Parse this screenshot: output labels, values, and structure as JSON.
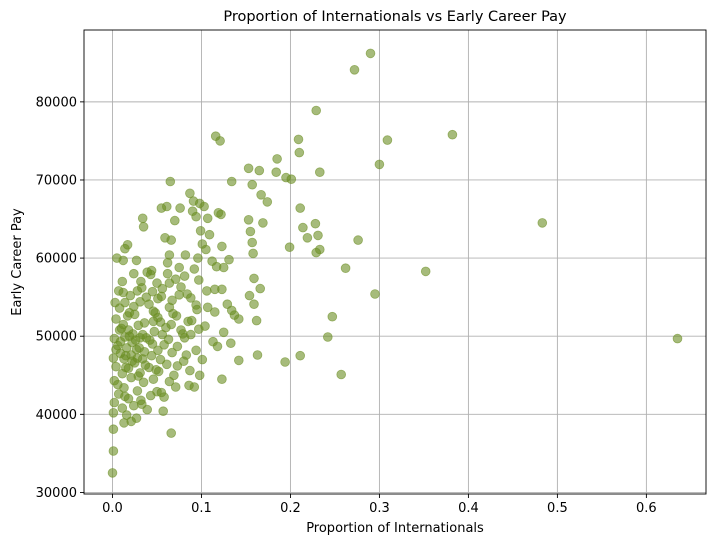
{
  "chart_data": {
    "type": "scatter",
    "title": "Proportion of Internationals vs Early Career Pay",
    "xlabel": "Proportion of Internationals",
    "ylabel": "Early Career Pay",
    "xlim": [
      -0.032,
      0.667
    ],
    "ylim": [
      29800,
      89200
    ],
    "xticks": [
      0.0,
      0.1,
      0.2,
      0.3,
      0.4,
      0.5,
      0.6
    ],
    "xtick_labels": [
      "0.0",
      "0.1",
      "0.2",
      "0.3",
      "0.4",
      "0.5",
      "0.6"
    ],
    "yticks": [
      30000,
      40000,
      50000,
      60000,
      70000,
      80000
    ],
    "ytick_labels": [
      "30000",
      "40000",
      "50000",
      "60000",
      "70000",
      "80000"
    ],
    "grid": true,
    "marker_color": "#6b8e23",
    "marker_alpha": 0.6,
    "points": [
      [
        0.29,
        86200
      ],
      [
        0.272,
        84100
      ],
      [
        0.229,
        78900
      ],
      [
        0.382,
        75800
      ],
      [
        0.309,
        75100
      ],
      [
        0.116,
        75600
      ],
      [
        0.121,
        75000
      ],
      [
        0.209,
        75200
      ],
      [
        0.21,
        73500
      ],
      [
        0.185,
        72700
      ],
      [
        0.3,
        72000
      ],
      [
        0.153,
        71500
      ],
      [
        0.165,
        71200
      ],
      [
        0.184,
        71000
      ],
      [
        0.233,
        71000
      ],
      [
        0.065,
        69800
      ],
      [
        0.134,
        69800
      ],
      [
        0.157,
        69400
      ],
      [
        0.195,
        70300
      ],
      [
        0.201,
        70100
      ],
      [
        0.167,
        68100
      ],
      [
        0.087,
        68300
      ],
      [
        0.091,
        67300
      ],
      [
        0.174,
        67200
      ],
      [
        0.061,
        66600
      ],
      [
        0.055,
        66400
      ],
      [
        0.076,
        66400
      ],
      [
        0.098,
        67000
      ],
      [
        0.09,
        66000
      ],
      [
        0.211,
        66400
      ],
      [
        0.119,
        65800
      ],
      [
        0.122,
        65600
      ],
      [
        0.094,
        65300
      ],
      [
        0.107,
        65100
      ],
      [
        0.034,
        65100
      ],
      [
        0.153,
        64900
      ],
      [
        0.169,
        64500
      ],
      [
        0.228,
        64400
      ],
      [
        0.483,
        64500
      ],
      [
        0.07,
        64800
      ],
      [
        0.035,
        64000
      ],
      [
        0.214,
        63900
      ],
      [
        0.155,
        63400
      ],
      [
        0.231,
        62900
      ],
      [
        0.099,
        63500
      ],
      [
        0.109,
        63000
      ],
      [
        0.059,
        62600
      ],
      [
        0.066,
        62300
      ],
      [
        0.157,
        62000
      ],
      [
        0.276,
        62300
      ],
      [
        0.105,
        61100
      ],
      [
        0.123,
        61500
      ],
      [
        0.017,
        61700
      ],
      [
        0.014,
        61200
      ],
      [
        0.219,
        62600
      ],
      [
        0.233,
        61100
      ],
      [
        0.229,
        60700
      ],
      [
        0.199,
        61400
      ],
      [
        0.158,
        60600
      ],
      [
        0.064,
        60400
      ],
      [
        0.082,
        60400
      ],
      [
        0.096,
        60000
      ],
      [
        0.005,
        60000
      ],
      [
        0.012,
        59700
      ],
      [
        0.027,
        59700
      ],
      [
        0.131,
        59800
      ],
      [
        0.117,
        58900
      ],
      [
        0.125,
        58800
      ],
      [
        0.075,
        58800
      ],
      [
        0.092,
        58600
      ],
      [
        0.262,
        58700
      ],
      [
        0.352,
        58300
      ],
      [
        0.044,
        58400
      ],
      [
        0.039,
        58200
      ],
      [
        0.024,
        58000
      ],
      [
        0.062,
        58000
      ],
      [
        0.081,
        57700
      ],
      [
        0.159,
        57400
      ],
      [
        0.071,
        57300
      ],
      [
        0.032,
        57000
      ],
      [
        0.011,
        57000
      ],
      [
        0.097,
        57200
      ],
      [
        0.056,
        56100
      ],
      [
        0.077,
        56300
      ],
      [
        0.064,
        56800
      ],
      [
        0.166,
        56100
      ],
      [
        0.115,
        56000
      ],
      [
        0.123,
        56000
      ],
      [
        0.007,
        55800
      ],
      [
        0.012,
        55600
      ],
      [
        0.028,
        55800
      ],
      [
        0.045,
        55700
      ],
      [
        0.055,
        55100
      ],
      [
        0.075,
        55300
      ],
      [
        0.084,
        55400
      ],
      [
        0.154,
        55200
      ],
      [
        0.295,
        55400
      ],
      [
        0.038,
        55000
      ],
      [
        0.051,
        54800
      ],
      [
        0.067,
        54600
      ],
      [
        0.088,
        54900
      ],
      [
        0.003,
        54300
      ],
      [
        0.014,
        54300
      ],
      [
        0.031,
        54400
      ],
      [
        0.094,
        54000
      ],
      [
        0.129,
        54100
      ],
      [
        0.159,
        54100
      ],
      [
        0.064,
        53700
      ],
      [
        0.107,
        53700
      ],
      [
        0.134,
        53300
      ],
      [
        0.137,
        52700
      ],
      [
        0.115,
        53100
      ],
      [
        0.046,
        53200
      ],
      [
        0.019,
        53000
      ],
      [
        0.025,
        52800
      ],
      [
        0.072,
        52600
      ],
      [
        0.247,
        52500
      ],
      [
        0.051,
        52400
      ],
      [
        0.004,
        52200
      ],
      [
        0.142,
        52200
      ],
      [
        0.162,
        52000
      ],
      [
        0.085,
        51900
      ],
      [
        0.054,
        51800
      ],
      [
        0.036,
        51700
      ],
      [
        0.012,
        51500
      ],
      [
        0.029,
        51400
      ],
      [
        0.066,
        51500
      ],
      [
        0.104,
        51300
      ],
      [
        0.097,
        50900
      ],
      [
        0.125,
        50500
      ],
      [
        0.077,
        50800
      ],
      [
        0.047,
        50600
      ],
      [
        0.008,
        50800
      ],
      [
        0.018,
        50800
      ],
      [
        0.023,
        50300
      ],
      [
        0.034,
        50200
      ],
      [
        0.056,
        50200
      ],
      [
        0.088,
        50200
      ],
      [
        0.002,
        49700
      ],
      [
        0.014,
        49900
      ],
      [
        0.031,
        49800
      ],
      [
        0.042,
        49500
      ],
      [
        0.063,
        49600
      ],
      [
        0.081,
        49800
      ],
      [
        0.113,
        49300
      ],
      [
        0.133,
        49100
      ],
      [
        0.242,
        49900
      ],
      [
        0.635,
        49700
      ],
      [
        0.022,
        49200
      ],
      [
        0.045,
        49000
      ],
      [
        0.058,
        48900
      ],
      [
        0.073,
        48700
      ],
      [
        0.006,
        48800
      ],
      [
        0.016,
        48500
      ],
      [
        0.027,
        48300
      ],
      [
        0.051,
        48200
      ],
      [
        0.094,
        48200
      ],
      [
        0.118,
        48700
      ],
      [
        0.036,
        48000
      ],
      [
        0.067,
        47900
      ],
      [
        0.009,
        47800
      ],
      [
        0.021,
        47600
      ],
      [
        0.044,
        47500
      ],
      [
        0.083,
        47600
      ],
      [
        0.163,
        47600
      ],
      [
        0.211,
        47500
      ],
      [
        0.001,
        47200
      ],
      [
        0.013,
        47100
      ],
      [
        0.034,
        47100
      ],
      [
        0.054,
        47000
      ],
      [
        0.101,
        47000
      ],
      [
        0.142,
        46900
      ],
      [
        0.194,
        46700
      ],
      [
        0.025,
        46600
      ],
      [
        0.061,
        46400
      ],
      [
        0.073,
        46200
      ],
      [
        0.004,
        46100
      ],
      [
        0.015,
        46000
      ],
      [
        0.041,
        46000
      ],
      [
        0.087,
        45600
      ],
      [
        0.052,
        45500
      ],
      [
        0.031,
        45300
      ],
      [
        0.011,
        45200
      ],
      [
        0.069,
        45000
      ],
      [
        0.098,
        45000
      ],
      [
        0.257,
        45100
      ],
      [
        0.123,
        44500
      ],
      [
        0.021,
        44700
      ],
      [
        0.046,
        44500
      ],
      [
        0.002,
        44300
      ],
      [
        0.035,
        44100
      ],
      [
        0.064,
        44200
      ],
      [
        0.086,
        43700
      ],
      [
        0.092,
        43500
      ],
      [
        0.013,
        43400
      ],
      [
        0.028,
        43000
      ],
      [
        0.055,
        42800
      ],
      [
        0.007,
        42600
      ],
      [
        0.043,
        42400
      ],
      [
        0.058,
        42200
      ],
      [
        0.018,
        42000
      ],
      [
        0.032,
        41800
      ],
      [
        0.002,
        41500
      ],
      [
        0.024,
        41100
      ],
      [
        0.011,
        40800
      ],
      [
        0.039,
        40600
      ],
      [
        0.057,
        40400
      ],
      [
        0.001,
        40200
      ],
      [
        0.016,
        39900
      ],
      [
        0.027,
        39500
      ],
      [
        0.021,
        39100
      ],
      [
        0.013,
        38900
      ],
      [
        0.066,
        37600
      ],
      [
        0.001,
        38100
      ],
      [
        0.001,
        35300
      ],
      [
        0.0,
        32500
      ],
      [
        0.019,
        50000
      ],
      [
        0.026,
        49500
      ],
      [
        0.03,
        48500
      ],
      [
        0.015,
        47500
      ],
      [
        0.022,
        46800
      ],
      [
        0.038,
        49800
      ],
      [
        0.01,
        51000
      ],
      [
        0.017,
        52600
      ],
      [
        0.024,
        53800
      ],
      [
        0.033,
        56200
      ],
      [
        0.041,
        54100
      ],
      [
        0.048,
        53000
      ],
      [
        0.06,
        51100
      ],
      [
        0.068,
        52900
      ],
      [
        0.079,
        50300
      ],
      [
        0.046,
        51900
      ],
      [
        0.009,
        49300
      ],
      [
        0.004,
        48300
      ],
      [
        0.028,
        47200
      ],
      [
        0.037,
        46300
      ],
      [
        0.049,
        45700
      ],
      [
        0.018,
        45900
      ],
      [
        0.029,
        44900
      ],
      [
        0.006,
        43800
      ],
      [
        0.014,
        42300
      ],
      [
        0.033,
        41300
      ],
      [
        0.05,
        42900
      ],
      [
        0.071,
        43500
      ],
      [
        0.08,
        46800
      ],
      [
        0.089,
        52000
      ],
      [
        0.095,
        53400
      ],
      [
        0.106,
        55800
      ],
      [
        0.112,
        59600
      ],
      [
        0.101,
        61800
      ],
      [
        0.103,
        66600
      ],
      [
        0.062,
        59400
      ],
      [
        0.05,
        56800
      ],
      [
        0.043,
        57900
      ],
      [
        0.02,
        55200
      ],
      [
        0.008,
        53600
      ]
    ]
  }
}
